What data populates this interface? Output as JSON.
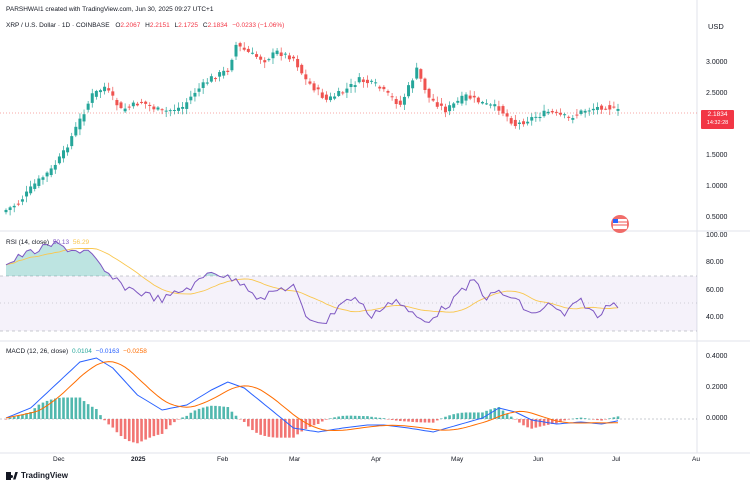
{
  "attribution": "PARSHWAI1 created with TradingView.com, Jun 30, 2025 09:27 UTC+1",
  "symbol": {
    "name": "XRP / U.S. Dollar · 1D · COINBASE",
    "o_label": "O",
    "o": "2.2067",
    "h_label": "H",
    "h": "2.2151",
    "l_label": "L",
    "l": "2.1725",
    "c_label": "C",
    "c": "2.1834",
    "change": "−0.0233 (−1.06%)"
  },
  "currency": "USD",
  "price_badge": {
    "price": "2.1834",
    "countdown": "14:32:28"
  },
  "price_axis": [
    "3.0000",
    "2.5000",
    "1.5000",
    "1.0000",
    "0.5000"
  ],
  "rsi": {
    "label": "RSI (14, close)",
    "value1": "50.13",
    "value2": "56.29",
    "axis": [
      "100.00",
      "80.00",
      "60.00",
      "40.00"
    ]
  },
  "macd": {
    "label": "MACD (12, 26, close)",
    "value1": "0.0104",
    "value2": "−0.0163",
    "value3": "−0.0258",
    "axis": [
      "0.4000",
      "0.2000",
      "0.0000"
    ]
  },
  "time_axis": [
    "Dec",
    "2025",
    "Feb",
    "Mar",
    "Apr",
    "May",
    "Jun",
    "Jul",
    "Au"
  ],
  "brand": "TradingView",
  "colors": {
    "up": "#26a69a",
    "down": "#ef5350",
    "rsi_line": "#7e57c2",
    "rsi_ma": "#f9c74f",
    "macd_line": "#2962ff",
    "signal_line": "#ff6d00",
    "rsi_band": "#7e57c2"
  }
}
